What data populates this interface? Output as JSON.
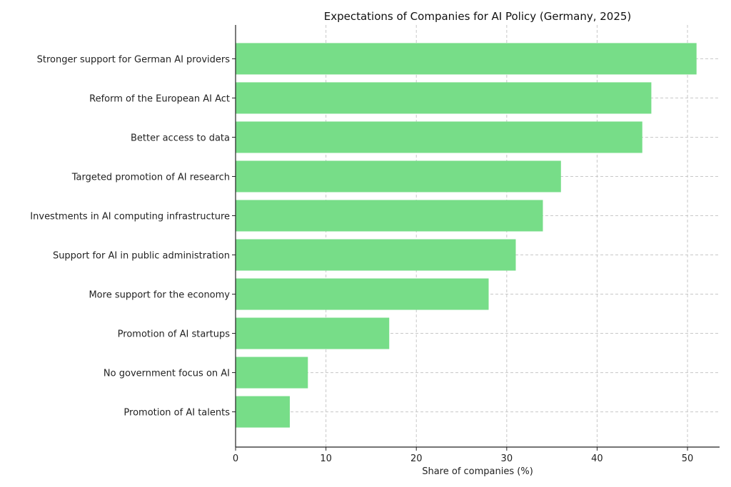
{
  "chart_data": {
    "type": "bar",
    "orientation": "horizontal",
    "title": "Expectations of Companies for AI Policy (Germany, 2025)",
    "xlabel": "Share of companies (%)",
    "ylabel": "",
    "categories": [
      "Stronger support for German AI providers",
      "Reform of the European AI Act",
      "Better access to data",
      "Targeted promotion of AI research",
      "Investments in AI computing infrastructure",
      "Support for AI in public administration",
      "More support for the economy",
      "Promotion of AI startups",
      "No government focus on AI",
      "Promotion of AI talents"
    ],
    "values": [
      51,
      46,
      45,
      36,
      34,
      31,
      28,
      17,
      8,
      6
    ],
    "xlim": [
      0,
      53.55
    ],
    "xticks": [
      0,
      10,
      20,
      30,
      40,
      50
    ],
    "grid": true,
    "legend": "none",
    "bar_color": "#77dd88"
  }
}
